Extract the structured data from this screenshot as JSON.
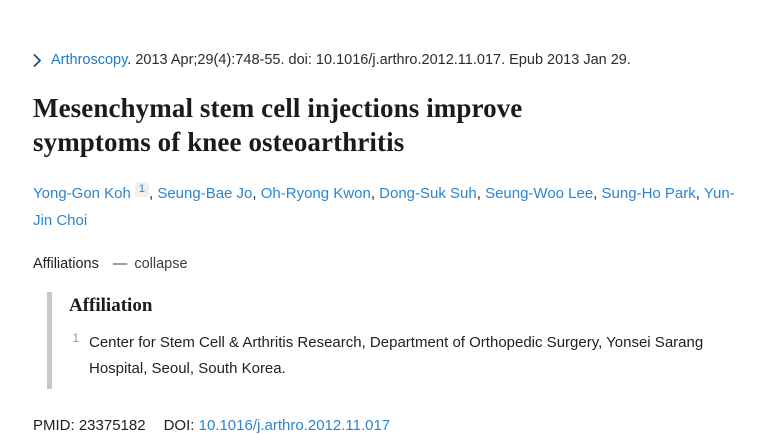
{
  "citation": {
    "journal": "Arthroscopy",
    "rest": ". 2013 Apr;29(4):748-55. doi: 10.1016/j.arthro.2012.11.017. Epub 2013 Jan 29."
  },
  "title": "Mesenchymal stem cell injections improve symptoms of knee osteoarthritis",
  "authors": [
    {
      "name": "Yong-Gon Koh",
      "sup": "1"
    },
    {
      "name": "Seung-Bae Jo"
    },
    {
      "name": "Oh-Ryong Kwon"
    },
    {
      "name": "Dong-Suk Suh"
    },
    {
      "name": "Seung-Woo Lee"
    },
    {
      "name": "Sung-Ho Park"
    },
    {
      "name": "Yun-Jin Choi"
    }
  ],
  "affiliations_toggle": {
    "label": "Affiliations",
    "collapse_label": "collapse"
  },
  "affiliation_section": {
    "heading": "Affiliation",
    "items": [
      {
        "number": "1",
        "text": "Center for Stem Cell & Arthritis Research, Department of Orthopedic Surgery, Yonsei Sarang Hospital, Seoul, South Korea."
      }
    ]
  },
  "identifiers": {
    "pmid_label": "PMID:",
    "pmid": "23375182",
    "doi_label": "DOI:",
    "doi": "10.1016/j.arthro.2012.11.017"
  },
  "icons": {
    "chevron_right": "›",
    "minus": "—"
  },
  "colors": {
    "link_blue": "#2b85d0",
    "journal_link_blue": "#1a7bc9",
    "chevron_navy": "#1b4f72",
    "text_dark": "#212121",
    "panel_border_gray": "#c8c8c8",
    "sup_background": "#f0f0f0"
  }
}
